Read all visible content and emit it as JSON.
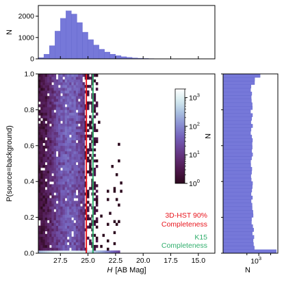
{
  "chart_data": [
    {
      "type": "bar",
      "panel": "top-histogram",
      "ylabel": "N",
      "x_axis_direction": "reversed",
      "xlim": [
        29.5,
        13.5
      ],
      "ylim": [
        0,
        2500
      ],
      "ytick_labels": [
        "0",
        "1000",
        "2000"
      ],
      "ytick_values": [
        0,
        1000,
        2000
      ],
      "peak": {
        "x": 26.6,
        "y": 2250
      },
      "series": [
        {
          "x": [
            29.25,
            28.75,
            28.25,
            27.75,
            27.25,
            26.75,
            26.25,
            25.75,
            25.25,
            24.75,
            24.25,
            23.75,
            23.25,
            22.75,
            22.25,
            21.75,
            21.25,
            20.75,
            20.25,
            19.75,
            19.25,
            18.75,
            18.25,
            17.75,
            17.25,
            16.75,
            16.25,
            15.75,
            15.25,
            14.75,
            14.25,
            13.75
          ],
          "values": [
            60,
            220,
            620,
            1300,
            1900,
            2250,
            2100,
            1700,
            1250,
            900,
            650,
            450,
            320,
            220,
            150,
            100,
            70,
            45,
            30,
            20,
            14,
            10,
            8,
            6,
            5,
            4,
            3,
            2,
            2,
            1,
            1,
            0
          ]
        }
      ]
    },
    {
      "type": "heatmap",
      "panel": "main",
      "xlabel_var": "H",
      "xlabel_unit": "[AB Mag]",
      "ylabel": "P(source=background)",
      "x_axis_direction": "reversed",
      "xlim": [
        29.5,
        13.5
      ],
      "ylim": [
        0.0,
        1.0
      ],
      "xtick_labels": [
        "27.5",
        "25.0",
        "22.5",
        "20.0",
        "17.5",
        "15.0"
      ],
      "xtick_values": [
        27.5,
        25.0,
        22.5,
        20.0,
        17.5,
        15.0
      ],
      "ytick_labels": [
        "0.0",
        "0.2",
        "0.4",
        "0.6",
        "0.8",
        "1.0"
      ],
      "ytick_values": [
        0.0,
        0.2,
        0.4,
        0.6,
        0.8,
        1.0
      ],
      "colorscale": "log",
      "color_range": [
        1,
        2000
      ],
      "colorbar_label": "N",
      "colorbar_tick_labels": [
        {
          "base": "10",
          "exp": "0",
          "value": 1
        },
        {
          "base": "10",
          "exp": "1",
          "value": 10
        },
        {
          "base": "10",
          "exp": "2",
          "value": 100
        },
        {
          "base": "10",
          "exp": "3",
          "value": 1000
        }
      ],
      "colormap": [
        "#2c0a1e",
        "#4a1546",
        "#5e2a6e",
        "#6b4496",
        "#7564bd",
        "#8a90d2",
        "#a9bfe0",
        "#d5ebef",
        "#ffffff"
      ],
      "density_model": {
        "source_peak_mag": 26.7,
        "source_sigma_mag": 0.85,
        "bright_tail_limit_mag": 22.0,
        "high_density_strip": {
          "y_max": 0.02,
          "value": 1200
        }
      },
      "reference_lines": [
        {
          "name": "3D-HST 90% Completeness",
          "line1": "3D-HST 90%",
          "line2": "Completeness",
          "x": 25.15,
          "color": "#e8141c"
        },
        {
          "name": "K15 Completeness",
          "line1": "K15",
          "line2": "Completeness",
          "x": 24.55,
          "color": "#2fae6c"
        }
      ]
    },
    {
      "type": "bar",
      "orientation": "horizontal",
      "panel": "right-histogram",
      "xlabel": "N",
      "xscale": "log",
      "xlim": [
        1,
        40000
      ],
      "xtick_labels": [
        {
          "base": "10",
          "exp": "3",
          "value": 1000
        }
      ],
      "ylim": [
        0.0,
        1.0
      ],
      "bins": 50,
      "profile": {
        "p0_bin": 30000,
        "p1_bin": 1300,
        "mid_level": 250
      }
    }
  ]
}
